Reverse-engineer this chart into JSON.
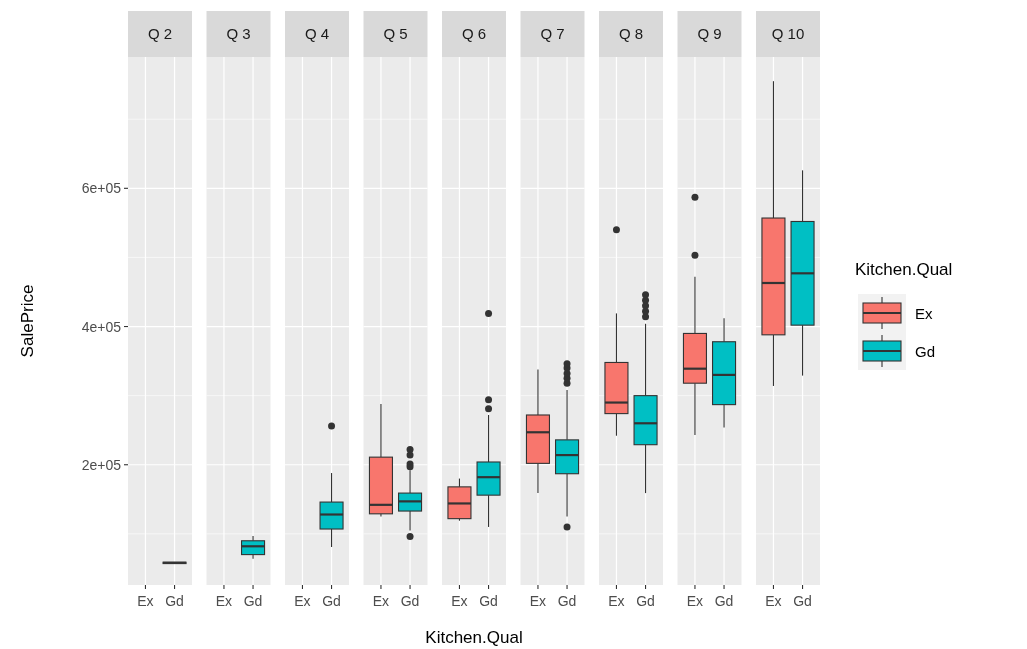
{
  "chart_data": [
    {
      "type": "box",
      "title": "Q 2",
      "ylabel": "SalePrice",
      "categories": [
        "Ex",
        "Gd"
      ],
      "ylim": [
        26000,
        790000
      ],
      "yticks": [
        {
          "value": 200000,
          "label": "2e+05"
        },
        {
          "value": 400000,
          "label": "4e+05"
        },
        {
          "value": 600000,
          "label": "6e+05"
        }
      ],
      "grid": true,
      "series": [
        {
          "color": "#f8766d",
          "boxes": [
            null,
            null
          ]
        },
        {
          "color": "#00bfc4",
          "boxes": [
            null,
            {
              "low": 57000,
              "q1": 57000,
              "median": 58000,
              "q3": 59000,
              "high": 59000
            }
          ]
        }
      ]
    },
    {
      "type": "box",
      "title": "Q 3",
      "categories": [
        "Ex",
        "Gd"
      ],
      "ylim": [
        26000,
        790000
      ],
      "yticks": [
        200000,
        400000,
        600000
      ],
      "grid": true,
      "tick_labels": "x",
      "series": [
        {
          "color": "#f8766d",
          "boxes": [
            null,
            null
          ]
        },
        {
          "color": "#00bfc4",
          "boxes": [
            null,
            {
              "low": 64000,
              "q1": 70000,
              "median": 82000,
              "q3": 90000,
              "high": 97000
            }
          ]
        }
      ]
    },
    {
      "type": "box",
      "title": "Q 4",
      "categories": [
        "Ex",
        "Gd"
      ],
      "ylim": [
        26000,
        790000
      ],
      "yticks": [
        200000,
        400000,
        600000
      ],
      "grid": true,
      "tick_labels": "x",
      "series": [
        {
          "color": "#f8766d",
          "boxes": [
            null,
            null
          ]
        },
        {
          "color": "#00bfc4",
          "boxes": [
            null,
            {
              "low": 81000,
              "q1": 107000,
              "median": 128000,
              "q3": 146000,
              "high": 188000,
              "outliers": [
                256000
              ]
            }
          ]
        }
      ]
    },
    {
      "type": "box",
      "title": "Q 5",
      "categories": [
        "Ex",
        "Gd"
      ],
      "ylim": [
        26000,
        790000
      ],
      "yticks": [
        200000,
        400000,
        600000
      ],
      "grid": true,
      "tick_labels": "x",
      "series": [
        {
          "color": "#f8766d",
          "boxes": [
            {
              "low": 125000,
              "q1": 129000,
              "median": 142000,
              "q3": 211000,
              "high": 288000
            },
            null
          ]
        },
        {
          "color": "#00bfc4",
          "boxes": [
            null,
            {
              "low": 105000,
              "q1": 133000,
              "median": 147000,
              "q3": 159000,
              "high": 192000,
              "outliers": [
                96000,
                197000,
                201000,
                214000,
                222000
              ]
            }
          ]
        }
      ]
    },
    {
      "type": "box",
      "title": "Q 6",
      "xlabel": "Kitchen.Qual",
      "categories": [
        "Ex",
        "Gd"
      ],
      "ylim": [
        26000,
        790000
      ],
      "yticks": [
        200000,
        400000,
        600000
      ],
      "grid": true,
      "tick_labels": "x",
      "series": [
        {
          "color": "#f8766d",
          "boxes": [
            {
              "low": 119000,
              "q1": 122000,
              "median": 144000,
              "q3": 168000,
              "high": 180000
            },
            null
          ]
        },
        {
          "color": "#00bfc4",
          "boxes": [
            null,
            {
              "low": 110000,
              "q1": 156000,
              "median": 182000,
              "q3": 204000,
              "high": 272000,
              "outliers": [
                281000,
                294000,
                419000
              ]
            }
          ]
        }
      ]
    },
    {
      "type": "box",
      "title": "Q 7",
      "categories": [
        "Ex",
        "Gd"
      ],
      "ylim": [
        26000,
        790000
      ],
      "yticks": [
        200000,
        400000,
        600000
      ],
      "grid": true,
      "tick_labels": "x",
      "series": [
        {
          "color": "#f8766d",
          "boxes": [
            {
              "low": 159000,
              "q1": 202000,
              "median": 247000,
              "q3": 272000,
              "high": 338000
            },
            null
          ]
        },
        {
          "color": "#00bfc4",
          "boxes": [
            null,
            {
              "low": 125000,
              "q1": 187000,
              "median": 214000,
              "q3": 236000,
              "high": 308000,
              "outliers": [
                110000,
                318000,
                325000,
                332000,
                340000,
                346000
              ]
            }
          ]
        }
      ]
    },
    {
      "type": "box",
      "title": "Q 8",
      "categories": [
        "Ex",
        "Gd"
      ],
      "ylim": [
        26000,
        790000
      ],
      "yticks": [
        200000,
        400000,
        600000
      ],
      "grid": true,
      "tick_labels": "x",
      "series": [
        {
          "color": "#f8766d",
          "boxes": [
            {
              "low": 242000,
              "q1": 274000,
              "median": 290000,
              "q3": 348000,
              "high": 419000,
              "outliers": [
                540000
              ]
            },
            null
          ]
        },
        {
          "color": "#00bfc4",
          "boxes": [
            null,
            {
              "low": 159000,
              "q1": 229000,
              "median": 260000,
              "q3": 300000,
              "high": 404000,
              "outliers": [
                414000,
                422000,
                430000,
                438000,
                446000
              ]
            }
          ]
        }
      ]
    },
    {
      "type": "box",
      "title": "Q 9",
      "categories": [
        "Ex",
        "Gd"
      ],
      "ylim": [
        26000,
        790000
      ],
      "yticks": [
        200000,
        400000,
        600000
      ],
      "grid": true,
      "tick_labels": "x",
      "series": [
        {
          "color": "#f8766d",
          "boxes": [
            {
              "low": 243000,
              "q1": 318000,
              "median": 339000,
              "q3": 390000,
              "high": 472000,
              "outliers": [
                503000,
                587000
              ]
            },
            null
          ]
        },
        {
          "color": "#00bfc4",
          "boxes": [
            null,
            {
              "low": 254000,
              "q1": 287000,
              "median": 330000,
              "q3": 378000,
              "high": 412000
            }
          ]
        }
      ]
    },
    {
      "type": "box",
      "title": "Q 10",
      "legend_title": "Kitchen.Qual",
      "legend": "right",
      "categories": [
        "Ex",
        "Gd"
      ],
      "ylim": [
        26000,
        790000
      ],
      "yticks": [
        200000,
        400000,
        600000
      ],
      "grid": true,
      "tick_labels": "x",
      "series": [
        {
          "name": "Ex",
          "color": "#f8766d",
          "boxes": [
            {
              "low": 314000,
              "q1": 388000,
              "median": 463000,
              "q3": 557000,
              "high": 755000
            },
            null
          ]
        },
        {
          "name": "Gd",
          "color": "#00bfc4",
          "boxes": [
            null,
            {
              "low": 329000,
              "q1": 402000,
              "median": 477000,
              "q3": 552000,
              "high": 626000
            }
          ]
        }
      ]
    }
  ]
}
